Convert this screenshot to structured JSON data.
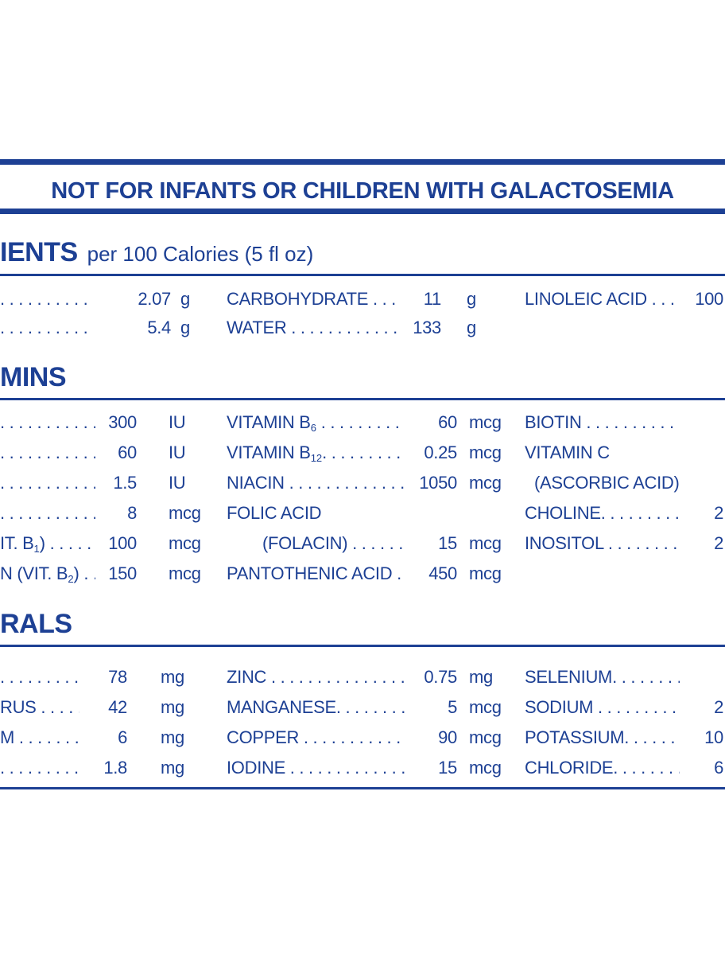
{
  "colors": {
    "navy": "#1d4094"
  },
  "banner": "NOT FOR INFANTS OR CHILDREN WITH GALACTOSEMIA",
  "sections": {
    "nutrients": {
      "title_bold": "IENTS",
      "title_note": "per 100 Calories (5 fl oz)",
      "col1": [
        {
          "pre": ". . . . . . . . . . . . . .",
          "value": "2.07",
          "unit": "g"
        },
        {
          "pre": ". . . . . . . . . . . . . .",
          "value": "5.4",
          "unit": "g"
        }
      ],
      "col2": [
        {
          "pre": "CARBOHYDRATE . . . . . . . .",
          "value": "11",
          "unit": "g"
        },
        {
          "pre": "WATER . . . . . . . . . . . . . . . .",
          "value": "133",
          "unit": "g"
        }
      ],
      "col3": [
        {
          "pre": "LINOLEIC ACID . . . . . . . . .",
          "value": "100",
          "unit": ""
        }
      ]
    },
    "vitamins": {
      "title_bold": "MINS",
      "col1": [
        {
          "pre": ". . . . . . . . . . . . . .",
          "value": "300",
          "unit": "IU"
        },
        {
          "pre": ". . . . . . . . . . . . . .",
          "value": "60",
          "unit": "IU"
        },
        {
          "pre": ". . . . . . . . . . . . . .",
          "value": "1.5",
          "unit": "IU"
        },
        {
          "pre": ". . . . . . . . . . . . . .",
          "value": "8",
          "unit": "mcg"
        },
        {
          "pre": "IT. B",
          "sub": "1",
          "post": ") . . . . . . .",
          "value": "100",
          "unit": "mcg"
        },
        {
          "pre": "N (VIT. B",
          "sub": "2",
          "post": ") . . . . .",
          "value": "150",
          "unit": "mcg"
        }
      ],
      "col2": [
        {
          "pre": "VITAMIN B",
          "sub": "6",
          "post": " . . . . . . . . . . . .",
          "value": "60",
          "unit": "mcg"
        },
        {
          "pre": "VITAMIN B",
          "sub": "12",
          "post": ". . . . . . . . . . . .",
          "value": "0.25",
          "unit": "mcg"
        },
        {
          "pre": "NIACIN . . . . . . . . . . . . . .",
          "value": "1050",
          "unit": "mcg"
        },
        {
          "pre": "FOLIC ACID",
          "value": "",
          "unit": ""
        },
        {
          "pre": "(FOLACIN) . . . . . . . . .",
          "value": "15",
          "unit": "mcg"
        },
        {
          "pre": "PANTOTHENIC ACID . . . . . .",
          "value": "450",
          "unit": "mcg"
        }
      ],
      "col3": [
        {
          "pre": "BIOTIN . . . . . . . . . . . . . . . .",
          "value": "",
          "unit": ""
        },
        {
          "pre": "VITAMIN C",
          "value": "",
          "unit": ""
        },
        {
          "pre": "(ASCORBIC ACID) . . . . . . . .",
          "value": "",
          "unit": ""
        },
        {
          "pre": "CHOLINE. . . . . . . . . . . . . .",
          "value": "2",
          "unit": ""
        },
        {
          "pre": "INOSITOL . . . . . . . . . . . . .",
          "value": "2",
          "unit": ""
        }
      ]
    },
    "minerals": {
      "title_bold": "RALS",
      "col1": [
        {
          "pre": ". . . . . . . . . . . . . .",
          "value": "78",
          "unit": "mg"
        },
        {
          "pre": "RUS . . . . . . . . . . .",
          "value": "42",
          "unit": "mg"
        },
        {
          "pre": "M . . . . . . . . . . . .",
          "value": "6",
          "unit": "mg"
        },
        {
          "pre": ". . . . . . . . . . . . . .",
          "value": "1.8",
          "unit": "mg"
        }
      ],
      "col2": [
        {
          "pre": "ZINC . . . . . . . . . . . . . . . . . .",
          "value": "0.75",
          "unit": "mg"
        },
        {
          "pre": "MANGANESE. . . . . . . . . . . .",
          "value": "5",
          "unit": "mcg"
        },
        {
          "pre": "COPPER . . . . . . . . . . . . . .",
          "value": "90",
          "unit": "mcg"
        },
        {
          "pre": "IODINE . . . . . . . . . . . . . . .",
          "value": "15",
          "unit": "mcg"
        }
      ],
      "col3": [
        {
          "pre": "SELENIUM. . . . . . . . . . . . . .",
          "value": "",
          "unit": ""
        },
        {
          "pre": "SODIUM . . . . . . . . . . . . . .",
          "value": "2",
          "unit": ""
        },
        {
          "pre": "POTASSIUM. . . . . . . . . . . .",
          "value": "10",
          "unit": ""
        },
        {
          "pre": "CHLORIDE. . . . . . . . . . . . .",
          "value": "6",
          "unit": ""
        }
      ]
    }
  }
}
